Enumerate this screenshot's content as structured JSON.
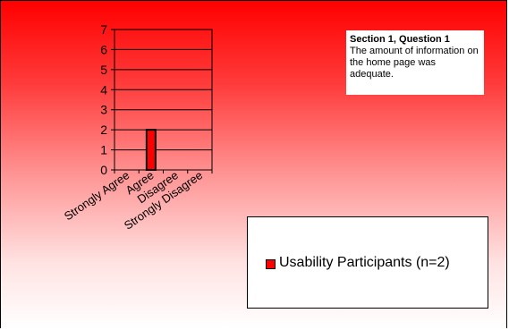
{
  "note": {
    "title": "Section 1, Question 1",
    "text": "The amount of information on the home page was adequate."
  },
  "chart_data": {
    "type": "bar",
    "categories": [
      "Strongly Agree",
      "Agree",
      "Disagree",
      "Strongly Disagree"
    ],
    "series": [
      {
        "name": "Usability Participants (n=2)",
        "values": [
          0,
          2,
          0,
          0
        ]
      }
    ],
    "ylim": [
      0,
      7
    ],
    "yticks": [
      0,
      1,
      2,
      3,
      4,
      5,
      6,
      7
    ],
    "grid": true,
    "legend_position": "bottom-right",
    "bar_color": "#ff0000",
    "background_gradient": [
      "#ff0000",
      "#ffffff"
    ]
  }
}
